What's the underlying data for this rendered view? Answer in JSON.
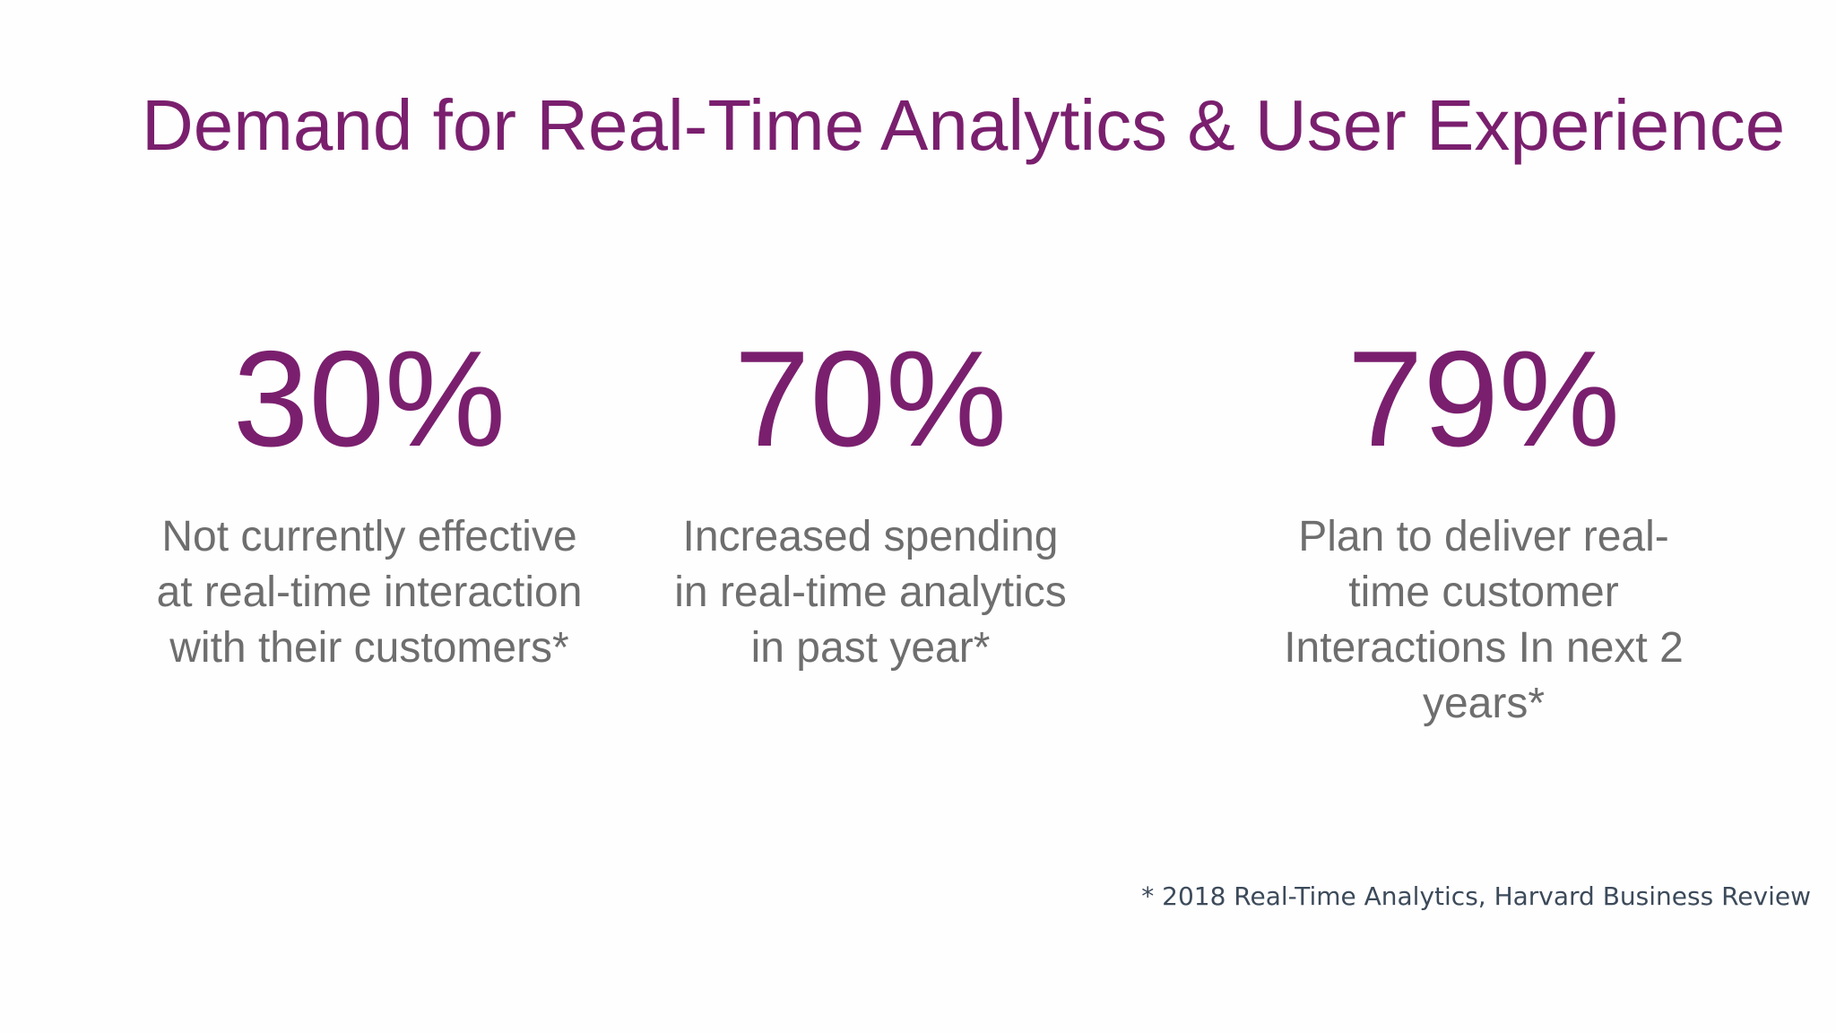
{
  "slide": {
    "title": "Demand for Real-Time Analytics & User Experience",
    "accent_color": "#7a1f6e",
    "text_color": "#6e6e6e",
    "stats": [
      {
        "value": "30%",
        "lines": [
          "Not currently effective",
          "at real-time interaction",
          "with their customers*"
        ]
      },
      {
        "value": "70%",
        "lines": [
          "Increased spending",
          "in real-time analytics",
          "in past year*"
        ]
      },
      {
        "value": "79%",
        "lines": [
          "Plan to deliver real-",
          "time customer",
          "Interactions In next 2",
          "years*"
        ]
      }
    ],
    "footnote": "* 2018 Real-Time Analytics, Harvard Business Review"
  }
}
